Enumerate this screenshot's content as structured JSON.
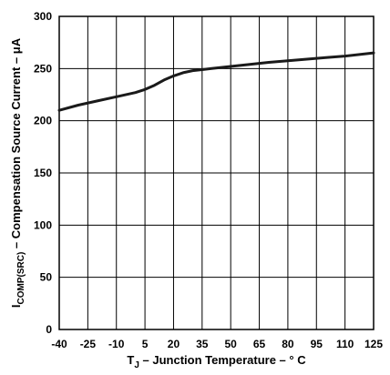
{
  "chart_data": {
    "type": "line",
    "xlabel": {
      "prefix": "T",
      "subscript": "J",
      "rest": " – Junction Temperature – ° C"
    },
    "ylabel": {
      "prefix": "I",
      "subscript": "COMP(SRC)",
      "rest": " – Compensation Source Current – μA"
    },
    "xlim": [
      -40,
      125
    ],
    "ylim": [
      0,
      300
    ],
    "x_ticks": [
      "-40",
      "-25",
      "-10",
      "5",
      "20",
      "35",
      "50",
      "65",
      "80",
      "95",
      "110",
      "125"
    ],
    "y_ticks": [
      "0",
      "50",
      "100",
      "150",
      "200",
      "250",
      "300"
    ],
    "grid": true,
    "series": [
      {
        "x": [
          -40,
          -30,
          -20,
          -10,
          0,
          5,
          10,
          15,
          20,
          25,
          30,
          35,
          40,
          50,
          60,
          70,
          80,
          90,
          100,
          110,
          125
        ],
        "values": [
          210,
          215,
          219,
          223,
          227,
          230,
          234,
          239,
          243,
          246,
          248,
          249,
          250,
          252,
          254,
          256,
          257.5,
          259,
          260.5,
          262,
          265
        ]
      }
    ]
  }
}
